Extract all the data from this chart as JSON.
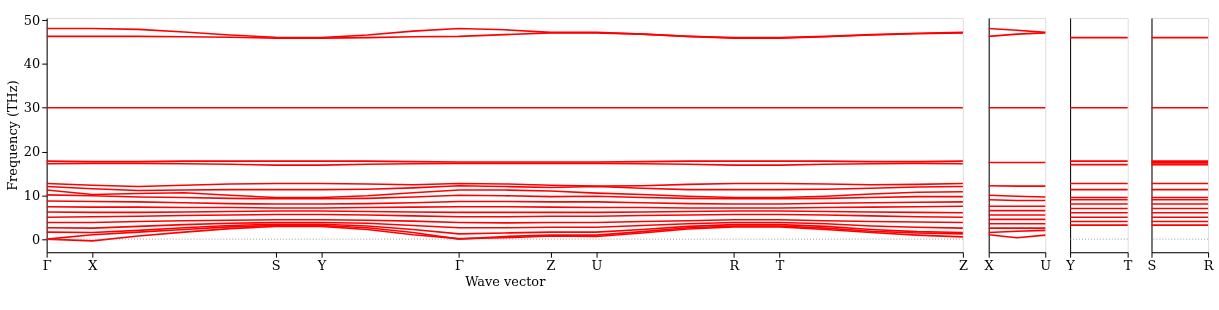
{
  "chart_data": [
    {
      "type": "line",
      "xlabel": "Wave vector",
      "ylabel": "Frequency (THz)",
      "ylim": [
        -3,
        50.5
      ],
      "yticks": [
        0,
        10,
        20,
        30,
        40,
        50
      ],
      "grid": false,
      "legend": false,
      "line_style": "solid",
      "marker": "none",
      "categories": [
        "Γ",
        "X",
        null,
        null,
        null,
        "S",
        "Y",
        null,
        null,
        "Γ",
        null,
        "Z",
        "U",
        null,
        null,
        "R",
        "T",
        null,
        null,
        null,
        "Z"
      ],
      "ref_lines": [
        {
          "axis": "y",
          "value": 0,
          "color": "#808080",
          "line_style": "dotted"
        }
      ],
      "series": [
        {
          "color": "#ff0000",
          "values": [
            48.1,
            48.1,
            47.9,
            47.3,
            46.6,
            46.1,
            46.0,
            46.6,
            47.5,
            48.1,
            47.8,
            47.2,
            47.2,
            46.8,
            46.3,
            46.0,
            46.0,
            46.3,
            46.7,
            47.0,
            47.2
          ]
        },
        {
          "color": "#ff0000",
          "values": [
            46.3,
            46.3,
            46.3,
            46.2,
            46.1,
            45.9,
            45.9,
            46.0,
            46.2,
            46.3,
            46.7,
            47.1,
            47.1,
            46.8,
            46.3,
            45.9,
            45.9,
            46.2,
            46.6,
            46.9,
            47.1
          ]
        },
        {
          "color": "#ff0000",
          "values": [
            30,
            30,
            30,
            30,
            30,
            30,
            30,
            30,
            30,
            30,
            30,
            30,
            30,
            30,
            30,
            30,
            30,
            30,
            30,
            30,
            30
          ]
        },
        {
          "color": "#ff0000",
          "values": [
            17.8,
            17.7,
            17.7,
            17.8,
            17.8,
            17.8,
            17.8,
            17.8,
            17.7,
            17.6,
            17.6,
            17.6,
            17.6,
            17.7,
            17.8,
            17.8,
            17.8,
            17.8,
            17.7,
            17.7,
            17.8
          ]
        },
        {
          "color": "#ff0000",
          "values": [
            17.2,
            17.3,
            17.3,
            17.2,
            17.1,
            16.9,
            16.9,
            17.1,
            17.2,
            17.3,
            17.3,
            17.3,
            17.3,
            17.2,
            17.1,
            16.9,
            16.9,
            17.1,
            17.2,
            17.3,
            17.2
          ]
        },
        {
          "color": "#ff0000",
          "values": [
            12.7,
            12.3,
            12.0,
            12.3,
            12.6,
            12.7,
            12.7,
            12.6,
            12.4,
            12.7,
            12.6,
            12.3,
            12.1,
            12.2,
            12.5,
            12.7,
            12.7,
            12.6,
            12.4,
            12.5,
            12.7
          ]
        },
        {
          "color": "#ff0000",
          "values": [
            12.0,
            11.5,
            11.1,
            11.2,
            11.3,
            11.3,
            11.3,
            11.4,
            11.7,
            12.2,
            12.0,
            11.8,
            12.0,
            11.6,
            11.3,
            11.3,
            11.3,
            11.4,
            11.6,
            11.9,
            12.0
          ]
        },
        {
          "color": "#ff0000",
          "values": [
            11.2,
            10.2,
            10.4,
            10.6,
            10.0,
            9.5,
            9.5,
            9.9,
            10.6,
            11.2,
            11.2,
            11.0,
            10.5,
            10.2,
            9.8,
            9.5,
            9.5,
            9.8,
            10.3,
            10.7,
            10.8
          ]
        },
        {
          "color": "#ff0000",
          "values": [
            10.1,
            9.9,
            9.6,
            9.5,
            9.3,
            9.2,
            9.2,
            9.3,
            9.6,
            10.0,
            9.9,
            9.7,
            9.8,
            9.5,
            9.3,
            9.2,
            9.2,
            9.3,
            9.5,
            9.7,
            9.7
          ]
        },
        {
          "color": "#ff0000",
          "values": [
            8.7,
            8.6,
            8.5,
            8.3,
            8.1,
            8.0,
            8.0,
            8.1,
            8.3,
            8.6,
            8.6,
            8.5,
            8.5,
            8.3,
            8.1,
            8.0,
            8.0,
            8.2,
            8.3,
            8.4,
            8.5
          ]
        },
        {
          "color": "#ff0000",
          "values": [
            7.4,
            7.3,
            7.3,
            7.2,
            7.2,
            7.1,
            7.1,
            7.2,
            7.3,
            7.4,
            7.4,
            7.3,
            7.2,
            7.2,
            7.1,
            7.1,
            7.1,
            7.2,
            7.3,
            7.4,
            7.5
          ]
        },
        {
          "color": "#ff0000",
          "values": [
            6.2,
            6.1,
            6.1,
            6.2,
            6.3,
            6.4,
            6.4,
            6.3,
            6.2,
            6.1,
            6.1,
            6.1,
            6.1,
            6.2,
            6.3,
            6.4,
            6.4,
            6.3,
            6.2,
            6.1,
            6.0
          ]
        },
        {
          "color": "#ff0000",
          "values": [
            5.0,
            5.1,
            5.2,
            5.4,
            5.5,
            5.6,
            5.6,
            5.5,
            5.3,
            5.1,
            5.1,
            5.2,
            5.2,
            5.4,
            5.5,
            5.6,
            5.6,
            5.5,
            5.3,
            5.1,
            5.0
          ]
        },
        {
          "color": "#ff0000",
          "values": [
            3.8,
            3.8,
            4.0,
            4.2,
            4.3,
            4.4,
            4.4,
            4.3,
            4.1,
            3.8,
            3.7,
            3.8,
            3.8,
            4.0,
            4.2,
            4.4,
            4.4,
            4.2,
            4.0,
            3.9,
            3.8
          ]
        },
        {
          "color": "#ff0000",
          "values": [
            2.6,
            2.5,
            2.9,
            3.3,
            3.6,
            3.8,
            3.8,
            3.6,
            3.1,
            2.6,
            2.6,
            2.7,
            2.7,
            3.1,
            3.5,
            3.8,
            3.8,
            3.5,
            3.0,
            2.7,
            2.5
          ]
        },
        {
          "color": "#ff0000",
          "values": [
            1.6,
            1.5,
            2.0,
            2.6,
            3.1,
            3.4,
            3.4,
            3.0,
            2.2,
            1.2,
            1.4,
            1.6,
            1.6,
            2.2,
            2.9,
            3.3,
            3.3,
            2.9,
            2.2,
            1.7,
            1.5
          ]
        },
        {
          "color": "#ff0000",
          "values": [
            0,
            1.0,
            1.6,
            2.2,
            2.8,
            3.1,
            3.1,
            2.6,
            1.5,
            0,
            0.6,
            0.9,
            0.9,
            1.7,
            2.6,
            3.0,
            3.0,
            2.5,
            1.8,
            1.4,
            1.2
          ]
        },
        {
          "color": "#ff0000",
          "values": [
            0,
            -0.4,
            0.7,
            1.6,
            2.4,
            2.9,
            2.9,
            2.2,
            1.0,
            0.1,
            0.3,
            0.7,
            0.6,
            1.4,
            2.3,
            2.8,
            2.8,
            2.2,
            1.5,
            0.9,
            0.5
          ]
        }
      ]
    },
    {
      "type": "line",
      "ylim": [
        -3,
        50.5
      ],
      "yticks": [
        0,
        10,
        20,
        30,
        40,
        50
      ],
      "tick_labels": "x",
      "grid": false,
      "legend": false,
      "line_style": "solid",
      "marker": "none",
      "categories": [
        "X",
        null,
        "U"
      ],
      "series": [
        {
          "color": "#ff0000",
          "values": [
            48.1,
            47.7,
            47.2
          ]
        },
        {
          "color": "#ff0000",
          "values": [
            46.3,
            46.8,
            47.1
          ]
        },
        {
          "color": "#ff0000",
          "values": [
            30,
            30,
            30
          ]
        },
        {
          "color": "#ff0000",
          "values": [
            17.5,
            17.5,
            17.5
          ]
        },
        {
          "color": "#ff0000",
          "values": [
            12.2,
            12.1,
            12.1
          ]
        },
        {
          "color": "#ff0000",
          "values": [
            10,
            9.8,
            9.6
          ]
        },
        {
          "color": "#ff0000",
          "values": [
            9,
            8.8,
            8.8
          ]
        },
        {
          "color": "#ff0000",
          "values": [
            7.5,
            7.5,
            7.5
          ]
        },
        {
          "color": "#ff0000",
          "values": [
            6.5,
            6.5,
            6.5
          ]
        },
        {
          "color": "#ff0000",
          "values": [
            5.5,
            5.5,
            5.5
          ]
        },
        {
          "color": "#ff0000",
          "values": [
            4.5,
            4.5,
            4.5
          ]
        },
        {
          "color": "#ff0000",
          "values": [
            3.5,
            3.5,
            3.5
          ]
        },
        {
          "color": "#ff0000",
          "values": [
            2.5,
            2.5,
            2.5
          ]
        },
        {
          "color": "#ff0000",
          "values": [
            1.5,
            1.8,
            2.0
          ]
        },
        {
          "color": "#ff0000",
          "values": [
            1.0,
            0.3,
            0.9
          ]
        }
      ]
    },
    {
      "type": "line",
      "ylim": [
        -3,
        50.5
      ],
      "yticks": [
        0,
        10,
        20,
        30,
        40,
        50
      ],
      "tick_labels": "x",
      "grid": false,
      "legend": false,
      "line_style": "solid",
      "marker": "none",
      "categories": [
        "Y",
        null,
        "T"
      ],
      "ref_lines": [
        {
          "axis": "y",
          "value": 0,
          "color": "#808080",
          "line_style": "dotted"
        }
      ],
      "series": [
        {
          "color": "#ff0000",
          "values": [
            46,
            46,
            46
          ]
        },
        {
          "color": "#ff0000",
          "values": [
            30,
            30,
            30
          ]
        },
        {
          "color": "#ff0000",
          "values": [
            17.8,
            17.8,
            17.8
          ]
        },
        {
          "color": "#ff0000",
          "values": [
            17.0,
            17.0,
            17.0
          ]
        },
        {
          "color": "#ff0000",
          "values": [
            12.7,
            12.7,
            12.7
          ]
        },
        {
          "color": "#ff0000",
          "values": [
            11.3,
            11.3,
            11.3
          ]
        },
        {
          "color": "#ff0000",
          "values": [
            9.5,
            9.5,
            9.5
          ]
        },
        {
          "color": "#ff0000",
          "values": [
            9,
            9,
            9
          ]
        },
        {
          "color": "#ff0000",
          "values": [
            8,
            8,
            8
          ]
        },
        {
          "color": "#ff0000",
          "values": [
            7,
            7,
            7
          ]
        },
        {
          "color": "#ff0000",
          "values": [
            6,
            6,
            6
          ]
        },
        {
          "color": "#ff0000",
          "values": [
            5,
            5,
            5
          ]
        },
        {
          "color": "#ff0000",
          "values": [
            4,
            4,
            4
          ]
        },
        {
          "color": "#ff0000",
          "values": [
            3.2,
            3.2,
            3.2
          ]
        }
      ]
    },
    {
      "type": "line",
      "ylim": [
        -3,
        50.5
      ],
      "yticks": [
        0,
        10,
        20,
        30,
        40,
        50
      ],
      "tick_labels": "x",
      "grid": false,
      "legend": false,
      "line_style": "solid",
      "marker": "none",
      "categories": [
        "S",
        null,
        "R"
      ],
      "ref_lines": [
        {
          "axis": "y",
          "value": 0,
          "color": "#808080",
          "line_style": "dotted"
        }
      ],
      "series": [
        {
          "color": "#ff0000",
          "values": [
            46,
            46,
            46
          ]
        },
        {
          "color": "#ff0000",
          "values": [
            30,
            30,
            30
          ]
        },
        {
          "color": "#ff0000",
          "values": [
            17.8,
            17.8,
            17.8
          ]
        },
        {
          "color": "#ff0000",
          "values": [
            17.4,
            17.4,
            17.4
          ]
        },
        {
          "color": "#ff0000",
          "values": [
            17.0,
            17.0,
            17.0
          ]
        },
        {
          "color": "#ff0000",
          "values": [
            12.7,
            12.7,
            12.7
          ]
        },
        {
          "color": "#ff0000",
          "values": [
            11.3,
            11.3,
            11.3
          ]
        },
        {
          "color": "#ff0000",
          "values": [
            9.5,
            9.5,
            9.5
          ]
        },
        {
          "color": "#ff0000",
          "values": [
            9,
            9,
            9
          ]
        },
        {
          "color": "#ff0000",
          "values": [
            8,
            8,
            8
          ]
        },
        {
          "color": "#ff0000",
          "values": [
            7,
            7,
            7
          ]
        },
        {
          "color": "#ff0000",
          "values": [
            6,
            6,
            6
          ]
        },
        {
          "color": "#ff0000",
          "values": [
            5,
            5,
            5
          ]
        },
        {
          "color": "#ff0000",
          "values": [
            4,
            4,
            4
          ]
        },
        {
          "color": "#ff0000",
          "values": [
            3.2,
            3.2,
            3.2
          ]
        }
      ]
    }
  ]
}
